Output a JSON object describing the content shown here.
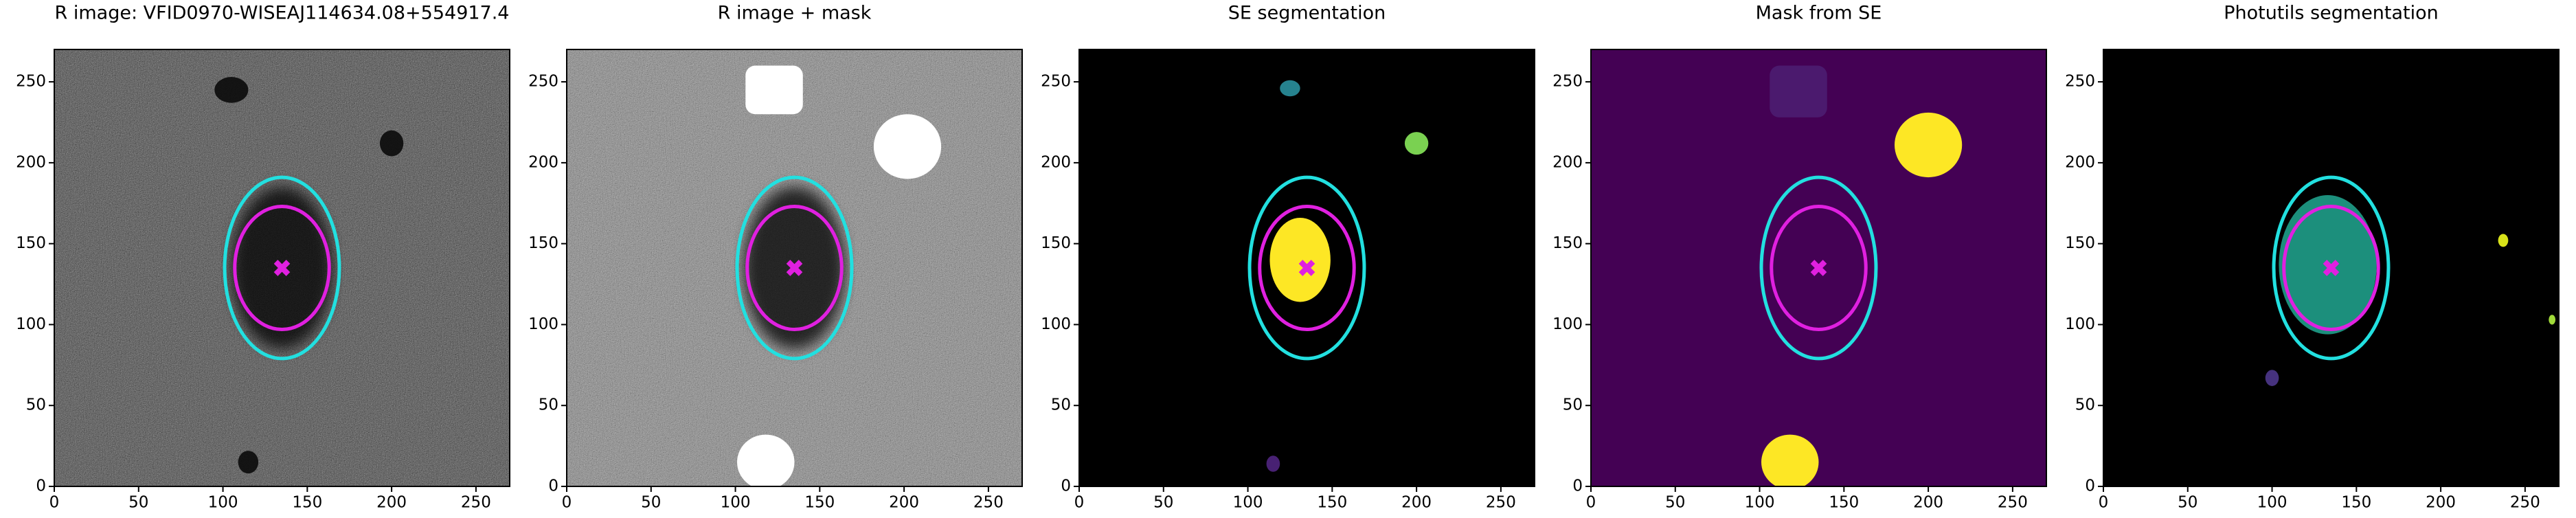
{
  "chart_data": [
    {
      "type": "image",
      "title": "R image: VFID0970-WISEAJ114634.08+554917.4",
      "background": "#4d4d4d",
      "noise": 0.55,
      "xlim": [
        0,
        270
      ],
      "ylim": [
        0,
        270
      ],
      "xticks": [
        0,
        50,
        100,
        150,
        200,
        250
      ],
      "yticks": [
        0,
        50,
        100,
        150,
        200,
        250
      ],
      "blobs": [
        {
          "x": 135,
          "y": 135,
          "rx": 30,
          "ry": 50,
          "color": "#000000",
          "opacity": 0.75
        },
        {
          "x": 105,
          "y": 245,
          "rx": 10,
          "ry": 8,
          "color": "#0a0a0a",
          "opacity": 0.9
        },
        {
          "x": 200,
          "y": 212,
          "rx": 7,
          "ry": 8,
          "color": "#0a0a0a",
          "opacity": 0.9
        },
        {
          "x": 115,
          "y": 15,
          "rx": 6,
          "ry": 7,
          "color": "#0a0a0a",
          "opacity": 0.9
        }
      ],
      "ellipses": [
        {
          "x": 135,
          "y": 135,
          "rx": 34,
          "ry": 56,
          "color": "#22e0e0"
        },
        {
          "x": 135,
          "y": 135,
          "rx": 28,
          "ry": 38,
          "color": "#e020e0"
        }
      ],
      "markers": [
        {
          "x": 135,
          "y": 135,
          "color": "#e020e0"
        }
      ]
    },
    {
      "type": "image",
      "title": "R image + mask",
      "background": "#8a8a8a",
      "noise": 0.55,
      "xlim": [
        0,
        270
      ],
      "ylim": [
        0,
        270
      ],
      "xticks": [
        0,
        50,
        100,
        150,
        200,
        250
      ],
      "yticks": [
        0,
        50,
        100,
        150,
        200,
        250
      ],
      "blobs": [
        {
          "x": 135,
          "y": 135,
          "rx": 30,
          "ry": 50,
          "color": "#000000",
          "opacity": 0.75
        },
        {
          "x": 123,
          "y": 245,
          "rx": 17,
          "ry": 15,
          "color": "#ffffff",
          "opacity": 1,
          "shape": "rect"
        },
        {
          "x": 202,
          "y": 210,
          "rx": 20,
          "ry": 20,
          "color": "#ffffff",
          "opacity": 1
        },
        {
          "x": 118,
          "y": 15,
          "rx": 17,
          "ry": 17,
          "color": "#ffffff",
          "opacity": 1
        }
      ],
      "ellipses": [
        {
          "x": 135,
          "y": 135,
          "rx": 34,
          "ry": 56,
          "color": "#22e0e0"
        },
        {
          "x": 135,
          "y": 135,
          "rx": 28,
          "ry": 38,
          "color": "#e020e0"
        }
      ],
      "markers": [
        {
          "x": 135,
          "y": 135,
          "color": "#e020e0"
        }
      ]
    },
    {
      "type": "image",
      "title": "SE segmentation",
      "background": "#000000",
      "noise": 0,
      "xlim": [
        0,
        270
      ],
      "ylim": [
        0,
        270
      ],
      "xticks": [
        0,
        50,
        100,
        150,
        200,
        250
      ],
      "yticks": [
        0,
        50,
        100,
        150,
        200,
        250
      ],
      "blobs": [
        {
          "x": 125,
          "y": 246,
          "rx": 6,
          "ry": 5,
          "color": "#26828e",
          "opacity": 1
        },
        {
          "x": 200,
          "y": 212,
          "rx": 7,
          "ry": 7,
          "color": "#7ad151",
          "opacity": 1
        },
        {
          "x": 115,
          "y": 14,
          "rx": 4,
          "ry": 5,
          "color": "#482173",
          "opacity": 1
        },
        {
          "x": 131,
          "y": 140,
          "rx": 18,
          "ry": 26,
          "color": "#fde725",
          "opacity": 1
        }
      ],
      "ellipses": [
        {
          "x": 135,
          "y": 135,
          "rx": 34,
          "ry": 56,
          "color": "#22e0e0"
        },
        {
          "x": 135,
          "y": 135,
          "rx": 28,
          "ry": 38,
          "color": "#e020e0"
        }
      ],
      "markers": [
        {
          "x": 135,
          "y": 135,
          "color": "#e020e0"
        }
      ]
    },
    {
      "type": "image",
      "title": "Mask from SE",
      "background": "#440154",
      "noise": 0,
      "xlim": [
        0,
        270
      ],
      "ylim": [
        0,
        270
      ],
      "xticks": [
        0,
        50,
        100,
        150,
        200,
        250
      ],
      "yticks": [
        0,
        50,
        100,
        150,
        200,
        250
      ],
      "blobs": [
        {
          "x": 123,
          "y": 244,
          "rx": 17,
          "ry": 16,
          "color": "#4b1a6e",
          "opacity": 1,
          "shape": "rect"
        },
        {
          "x": 200,
          "y": 211,
          "rx": 20,
          "ry": 20,
          "color": "#fde725",
          "opacity": 1
        },
        {
          "x": 118,
          "y": 15,
          "rx": 17,
          "ry": 17,
          "color": "#fde725",
          "opacity": 1
        }
      ],
      "ellipses": [
        {
          "x": 135,
          "y": 135,
          "rx": 34,
          "ry": 56,
          "color": "#22e0e0"
        },
        {
          "x": 135,
          "y": 135,
          "rx": 28,
          "ry": 38,
          "color": "#e020e0"
        }
      ],
      "markers": [
        {
          "x": 135,
          "y": 135,
          "color": "#e020e0"
        }
      ]
    },
    {
      "type": "image",
      "title": "Photutils segmentation",
      "background": "#000000",
      "noise": 0,
      "xlim": [
        0,
        270
      ],
      "ylim": [
        0,
        270
      ],
      "xticks": [
        0,
        50,
        100,
        150,
        200,
        250
      ],
      "yticks": [
        0,
        50,
        100,
        150,
        200,
        250
      ],
      "blobs": [
        {
          "x": 133,
          "y": 137,
          "rx": 29,
          "ry": 43,
          "color": "#1f9e89",
          "opacity": 0.9
        },
        {
          "x": 237,
          "y": 152,
          "rx": 3,
          "ry": 4,
          "color": "#d8e219",
          "opacity": 1
        },
        {
          "x": 266,
          "y": 103,
          "rx": 2,
          "ry": 3,
          "color": "#a0da39",
          "opacity": 1
        },
        {
          "x": 100,
          "y": 67,
          "rx": 4,
          "ry": 5,
          "color": "#46327e",
          "opacity": 1
        }
      ],
      "ellipses": [
        {
          "x": 135,
          "y": 135,
          "rx": 34,
          "ry": 56,
          "color": "#22e0e0"
        },
        {
          "x": 135,
          "y": 135,
          "rx": 28,
          "ry": 38,
          "color": "#e020e0"
        }
      ],
      "markers": [
        {
          "x": 135,
          "y": 135,
          "color": "#e020e0"
        }
      ]
    }
  ]
}
